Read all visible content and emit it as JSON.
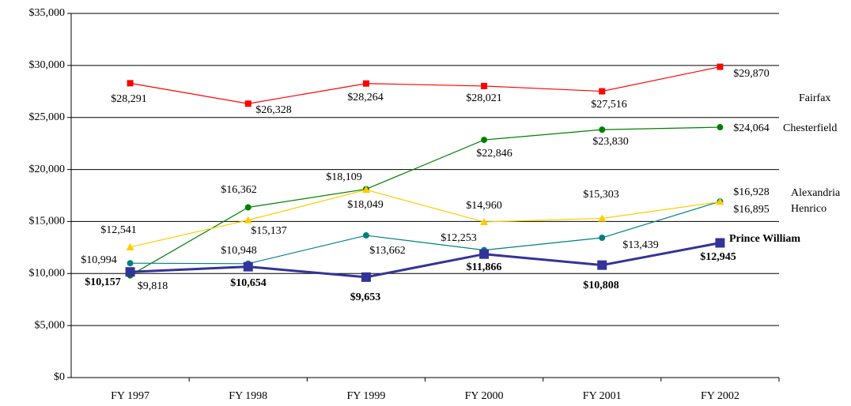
{
  "chart_data": {
    "type": "line",
    "categories": [
      "FY 1997",
      "FY 1998",
      "FY 1999",
      "FY 2000",
      "FY 2001",
      "FY 2002"
    ],
    "ylim": [
      0,
      35000
    ],
    "yticks": [
      {
        "value": 0,
        "label": "$0"
      },
      {
        "value": 5000,
        "label": "$5,000"
      },
      {
        "value": 10000,
        "label": "$10,000"
      },
      {
        "value": 15000,
        "label": "$15,000"
      },
      {
        "value": 20000,
        "label": "$20,000"
      },
      {
        "value": 25000,
        "label": "$25,000"
      },
      {
        "value": 30000,
        "label": "$30,000"
      },
      {
        "value": 35000,
        "label": "$35,000"
      }
    ],
    "grid": true,
    "series": [
      {
        "name": "Fairfax",
        "color": "#ff0000",
        "values": [
          28291,
          26328,
          28264,
          28021,
          27516,
          29870
        ],
        "value_labels": [
          "$28,291",
          "$26,328",
          "$28,264",
          "$28,021",
          "$27,516",
          "$29,870"
        ]
      },
      {
        "name": "Chesterfield",
        "color": "#008000",
        "values": [
          9818,
          16362,
          18109,
          22846,
          23830,
          24064
        ],
        "value_labels": [
          "$9,818",
          "$16,362",
          "$18,109",
          "$22,846",
          "$23,830",
          "$24,064"
        ]
      },
      {
        "name": "Alexandria",
        "color": "#008080",
        "values": [
          10994,
          10948,
          13662,
          12253,
          13439,
          16928
        ],
        "value_labels": [
          "$10,994",
          "$10,948",
          "$13,662",
          "$12,253",
          "$13,439",
          "$16,928"
        ]
      },
      {
        "name": "Henrico",
        "color": "#ffcc00",
        "values": [
          12541,
          15137,
          18049,
          14960,
          15303,
          16895
        ],
        "value_labels": [
          "$12,541",
          "$15,137",
          "$18,049",
          "$14,960",
          "$15,303",
          "$16,895"
        ]
      },
      {
        "name": "Prince William",
        "color": "#333399",
        "values": [
          10157,
          10654,
          9653,
          11866,
          10808,
          12945
        ],
        "value_labels": [
          "$10,157",
          "$10,654",
          "$9,653",
          "$11,866",
          "$10,808",
          "$12,945"
        ]
      }
    ]
  }
}
